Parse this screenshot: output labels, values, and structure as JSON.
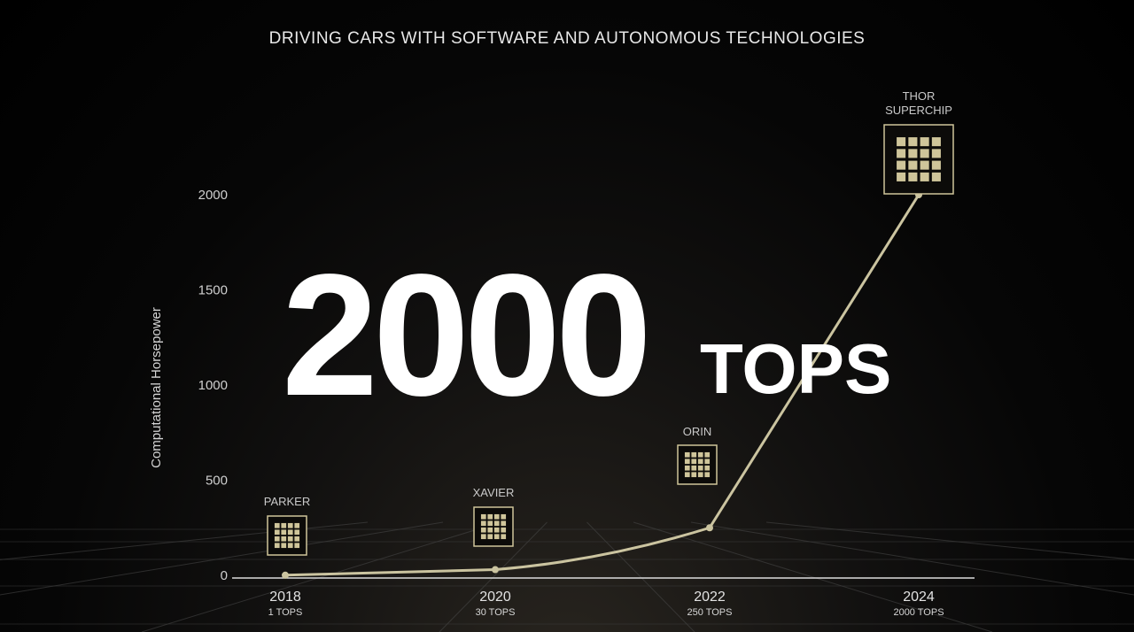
{
  "title": "DRIVING CARS WITH SOFTWARE AND AUTONOMOUS TECHNOLOGIES",
  "headline": {
    "value": "2000",
    "unit": "TOPS"
  },
  "colors": {
    "line": "#cbc4a0",
    "chip": "#cfc59a",
    "axis": "#dcdcdc"
  },
  "chart_data": {
    "type": "line",
    "ylabel": "Computational Horsepower",
    "ylim": [
      0,
      2000
    ],
    "yticks": [
      "0",
      "500",
      "1000",
      "1500",
      "2000"
    ],
    "x": [
      "2018",
      "2020",
      "2022",
      "2024"
    ],
    "x_sublabels": [
      "1 TOPS",
      "30 TOPS",
      "250 TOPS",
      "2000 TOPS"
    ],
    "values": [
      1,
      30,
      250,
      2000
    ],
    "point_labels": [
      {
        "lines": [
          "PARKER"
        ],
        "icon": "chip-icon"
      },
      {
        "lines": [
          "XAVIER"
        ],
        "icon": "chip-icon"
      },
      {
        "lines": [
          "ORIN"
        ],
        "icon": "chip-icon"
      },
      {
        "lines": [
          "THOR",
          "SUPERCHIP"
        ],
        "icon": "chip-icon"
      }
    ],
    "grid": false
  }
}
